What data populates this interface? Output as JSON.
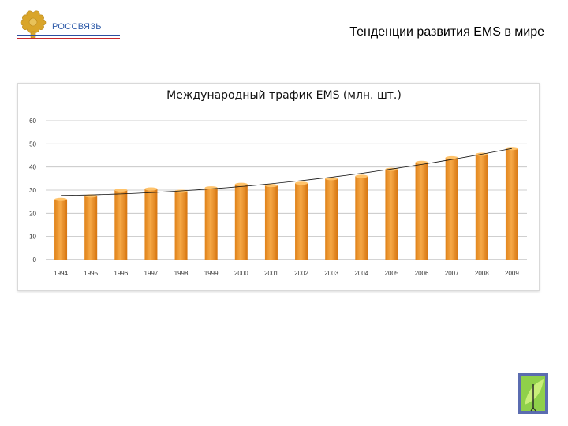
{
  "header": {
    "brand": "РОССВЯЗЬ",
    "title": "Тенденции развития EMS в мире"
  },
  "colors": {
    "bar_fill": "#f29a2e",
    "bar_highlight": "#ffc36b",
    "bar_shadow": "#d97a12",
    "brand_blue": "#2d4fa0",
    "brand_red": "#c8262c",
    "gold": "#d9a52a"
  },
  "icons": {
    "logo": "double-headed-eagle-emblem",
    "stamp": "postage-stamp"
  },
  "chart_data": {
    "type": "bar",
    "title": "Международный трафик   EMS (млн. шт.)",
    "categories": [
      "1994",
      "1995",
      "1996",
      "1997",
      "1998",
      "1999",
      "2000",
      "2001",
      "2002",
      "2003",
      "2004",
      "2005",
      "2006",
      "2007",
      "2008",
      "2009"
    ],
    "values": [
      26,
      27.5,
      30,
      30.5,
      29.5,
      31,
      32.5,
      32,
      33,
      35,
      36,
      39,
      42,
      44,
      45.5,
      48
    ],
    "trendline": true,
    "ylim": [
      0,
      60
    ],
    "yticks": [
      "0",
      "10",
      "20",
      "30",
      "40",
      "50",
      "60"
    ],
    "grid": true,
    "legend": "none",
    "xlabel": "",
    "ylabel": ""
  }
}
